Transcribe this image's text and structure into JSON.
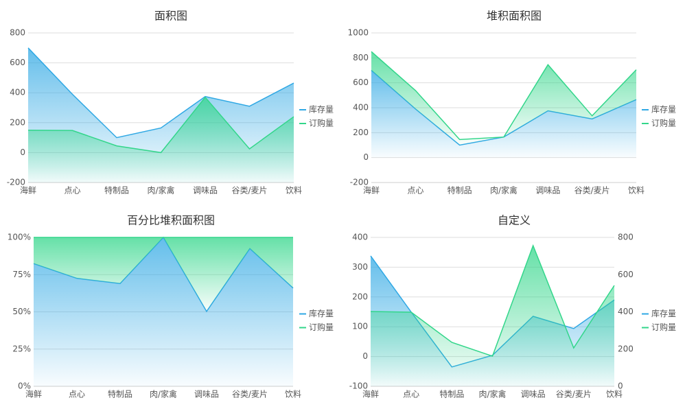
{
  "chart_data": [
    {
      "type": "area",
      "title": "面积图",
      "stacked": false,
      "categories": [
        "海鲜",
        "点心",
        "特制品",
        "肉/家禽",
        "调味品",
        "谷类/麦片",
        "饮料"
      ],
      "series": [
        {
          "name": "库存量",
          "color": "#2fa8e4",
          "values": [
            700,
            390,
            100,
            165,
            375,
            310,
            465
          ]
        },
        {
          "name": "订购量",
          "color": "#32d68a",
          "values": [
            150,
            148,
            45,
            0,
            370,
            25,
            240
          ]
        }
      ],
      "ylim": [
        -200,
        800
      ],
      "yticks": [
        -200,
        0,
        200,
        400,
        600,
        800
      ],
      "grid": true,
      "legend": "right"
    },
    {
      "type": "area",
      "title": "堆积面积图",
      "stacked": true,
      "categories": [
        "海鲜",
        "点心",
        "特制品",
        "肉/家禽",
        "调味品",
        "谷类/麦片",
        "饮料"
      ],
      "series": [
        {
          "name": "库存量",
          "color": "#2fa8e4",
          "values": [
            700,
            390,
            100,
            165,
            375,
            310,
            465
          ]
        },
        {
          "name": "订购量",
          "color": "#32d68a",
          "values": [
            150,
            148,
            45,
            0,
            370,
            25,
            240
          ]
        }
      ],
      "ylim": [
        -200,
        1000
      ],
      "yticks": [
        -200,
        0,
        200,
        400,
        600,
        800,
        1000
      ],
      "grid": true,
      "legend": "right"
    },
    {
      "type": "area",
      "title": "百分比堆积面积图",
      "stacked": true,
      "categories": [
        "海鲜",
        "点心",
        "特制品",
        "肉/家禽",
        "调味品",
        "谷类/麦片",
        "饮料"
      ],
      "series": [
        {
          "name": "库存量",
          "color": "#2fa8e4",
          "values": [
            82.4,
            72.5,
            69,
            100,
            50.3,
            92.5,
            66
          ]
        },
        {
          "name": "订购量",
          "color": "#32d68a",
          "values": [
            17.6,
            27.5,
            31,
            0,
            49.7,
            7.5,
            34
          ]
        }
      ],
      "ylim": [
        0,
        100
      ],
      "yticks": [
        {
          "value": 0,
          "label": "0%"
        },
        {
          "value": 25,
          "label": "25%"
        },
        {
          "value": 50,
          "label": "50%"
        },
        {
          "value": 75,
          "label": "75%"
        },
        {
          "value": 100,
          "label": "100%"
        }
      ],
      "grid": true,
      "legend": "right"
    },
    {
      "type": "area",
      "title": "自定义",
      "stacked": false,
      "categories": [
        "海鲜",
        "点心",
        "特制品",
        "肉/家禽",
        "调味品",
        "谷类/麦片",
        "饮料"
      ],
      "series": [
        {
          "name": "库存量",
          "color": "#2fa8e4",
          "values": [
            338,
            149,
            -35,
            4,
            135,
            94,
            190
          ]
        },
        {
          "name": "订购量",
          "color": "#32d68a",
          "axis": "y2",
          "values": [
            402,
            398,
            236,
            162,
            756,
            206,
            542
          ]
        }
      ],
      "ylim": [
        -100,
        400
      ],
      "yticks": [
        -100,
        0,
        100,
        200,
        300,
        400
      ],
      "y2lim": [
        0,
        800
      ],
      "y2ticks": [
        0,
        200,
        400,
        600,
        800
      ],
      "grid": true,
      "legend": "right"
    }
  ]
}
